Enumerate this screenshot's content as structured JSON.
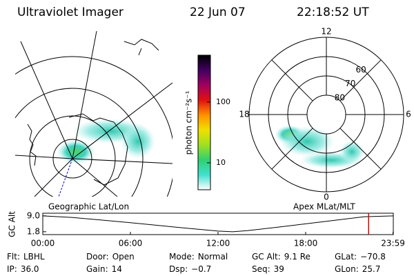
{
  "header": {
    "title": "Ultraviolet Imager",
    "date": "22 Jun 07",
    "time": "22:18:52 UT"
  },
  "colorbar": {
    "label": "photon cm⁻²s⁻¹",
    "scale": "log",
    "lim": [
      3.6,
      590
    ],
    "ticks": [
      10,
      100
    ],
    "colors": [
      "#ffffff",
      "#40e0d0",
      "#30d070",
      "#a0e020",
      "#f0e000",
      "#ff9000",
      "#e01010",
      "#a00060",
      "#400060",
      "#000000"
    ]
  },
  "left_panel": {
    "label": "Geographic Lat/Lon"
  },
  "right_panel": {
    "label": "Apex MLat/MLT",
    "lat_limit": 50,
    "lat_ticks": [
      80,
      70,
      60
    ],
    "mlt_ticks": [
      12,
      6,
      0,
      18
    ]
  },
  "chart_data": {
    "type": "line",
    "ylabel": "GC Alt",
    "x": [
      0,
      2,
      4,
      6,
      8,
      10,
      12,
      13,
      14,
      16,
      18,
      20,
      22,
      24
    ],
    "values": [
      9.0,
      8.3,
      7.1,
      5.9,
      4.6,
      3.3,
      2.1,
      1.8,
      2.3,
      3.8,
      5.4,
      7.0,
      8.6,
      9.0
    ],
    "color": "#000000",
    "xlim": [
      0,
      24
    ],
    "ylim": [
      0.5,
      10.2
    ],
    "xticks": [
      {
        "value": 0,
        "label": "00:00"
      },
      {
        "value": 6,
        "label": "06:00"
      },
      {
        "value": 12,
        "label": "12:00"
      },
      {
        "value": 18,
        "label": "18:00"
      },
      {
        "value": 23.98,
        "label": "23:59"
      }
    ],
    "yticks": [
      {
        "value": 9,
        "label": "9.0"
      },
      {
        "value": 1.8,
        "label": "1.8"
      }
    ],
    "marker": {
      "x": 22.31,
      "color": "#e00000"
    }
  },
  "footer": {
    "rows": [
      [
        {
          "label": "Flt:",
          "value": "LBHL"
        },
        {
          "label": "Door:",
          "value": "Open"
        },
        {
          "label": "Mode:",
          "value": "Normal"
        },
        {
          "label": "GC Alt:",
          "value": "9.1 Re"
        },
        {
          "label": "GLat:",
          "value": "−70.8"
        }
      ],
      [
        {
          "label": "IP:",
          "value": "36.0"
        },
        {
          "label": "Gain:",
          "value": "14"
        },
        {
          "label": "Dsp:",
          "value": "−0.7"
        },
        {
          "label": "Seq:",
          "value": "39"
        },
        {
          "label": "GLon:",
          "value": "25.7"
        }
      ]
    ]
  }
}
